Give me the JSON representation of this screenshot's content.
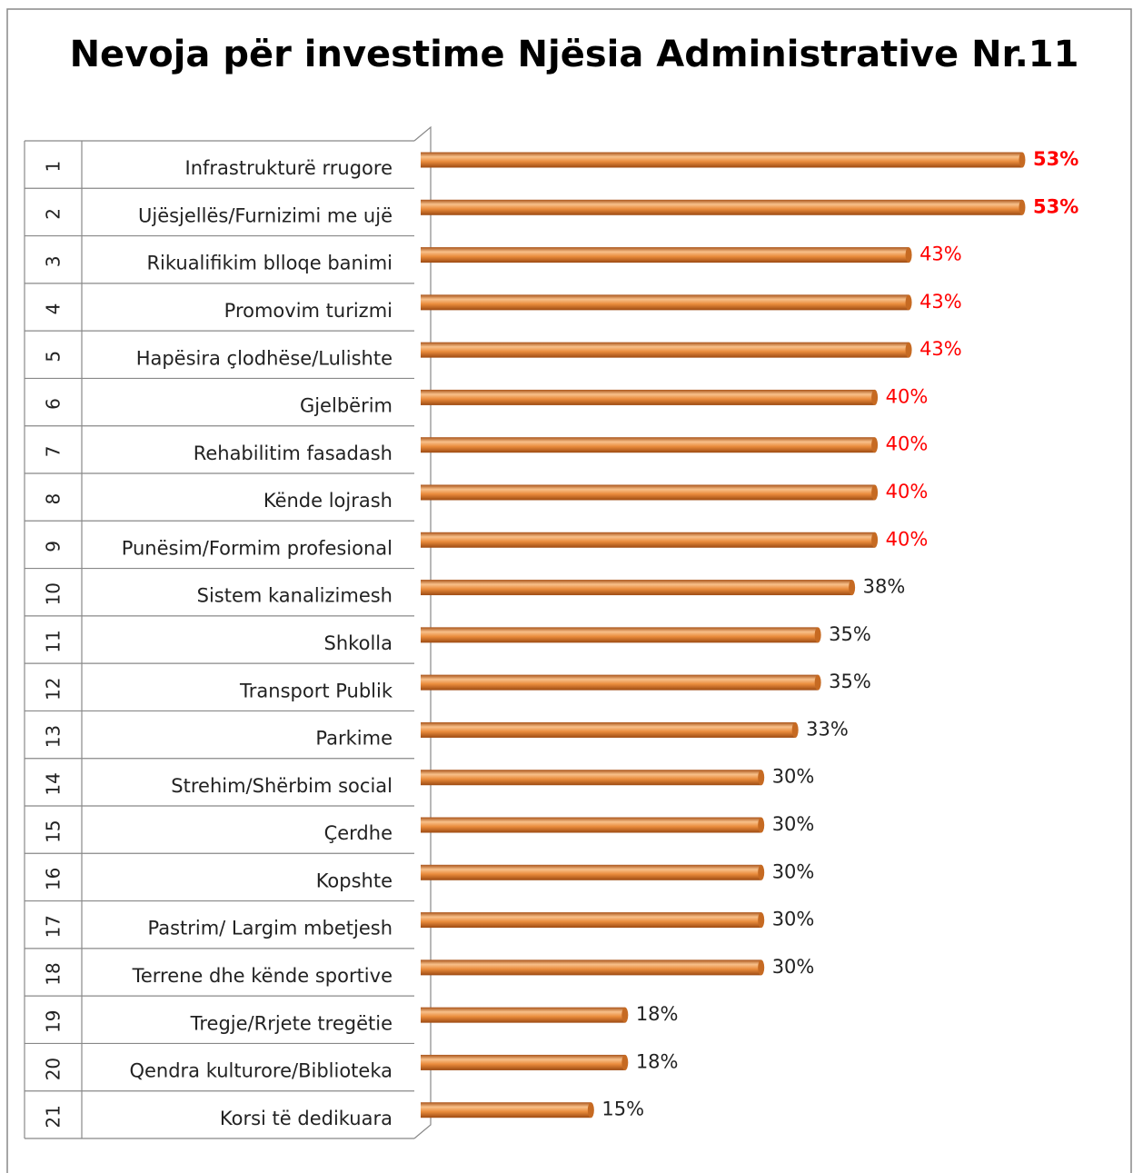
{
  "chart_data": {
    "type": "bar",
    "orientation": "horizontal",
    "title": "Nevoja për investime Njësia Administrative Nr.11",
    "row_numbers": [
      "1",
      "2",
      "3",
      "4",
      "5",
      "6",
      "7",
      "8",
      "9",
      "10",
      "11",
      "12",
      "13",
      "14",
      "15",
      "16",
      "17",
      "18",
      "19",
      "20",
      "21"
    ],
    "categories": [
      "Infrastrukturë rrugore",
      "Ujësjellës/Furnizimi me ujë",
      "Rikualifikim blloqe banimi",
      "Promovim turizmi",
      "Hapësira çlodhëse/Lulishte",
      "Gjelbërim",
      "Rehabilitim fasadash",
      "Kënde lojrash",
      "Punësim/Formim profesional",
      "Sistem kanalizimesh",
      "Shkolla",
      "Transport Publik",
      "Parkime",
      "Strehim/Shërbim social",
      "Çerdhe",
      "Kopshte",
      "Pastrim/ Largim mbetjesh",
      "Terrene dhe kënde sportive",
      "Tregje/Rrjete tregëtie",
      "Qendra kulturore/Biblioteka",
      "Korsi të dedikuara"
    ],
    "values": [
      53,
      53,
      43,
      43,
      43,
      40,
      40,
      40,
      40,
      38,
      35,
      35,
      33,
      30,
      30,
      30,
      30,
      30,
      18,
      18,
      15
    ],
    "value_labels": [
      "53%",
      "53%",
      "43%",
      "43%",
      "43%",
      "40%",
      "40%",
      "40%",
      "40%",
      "38%",
      "35%",
      "35%",
      "33%",
      "30%",
      "30%",
      "30%",
      "30%",
      "30%",
      "18%",
      "18%",
      "15%"
    ],
    "value_label_colors": [
      "#ff0000",
      "#ff0000",
      "#ff0000",
      "#ff0000",
      "#ff0000",
      "#ff0000",
      "#ff0000",
      "#ff0000",
      "#ff0000",
      "#222222",
      "#222222",
      "#222222",
      "#222222",
      "#222222",
      "#222222",
      "#222222",
      "#222222",
      "#222222",
      "#222222",
      "#222222",
      "#222222"
    ],
    "value_label_bold": [
      true,
      true,
      false,
      false,
      false,
      false,
      false,
      false,
      false,
      false,
      false,
      false,
      false,
      false,
      false,
      false,
      false,
      false,
      false,
      false,
      false
    ],
    "color": "#e8893a"
  }
}
